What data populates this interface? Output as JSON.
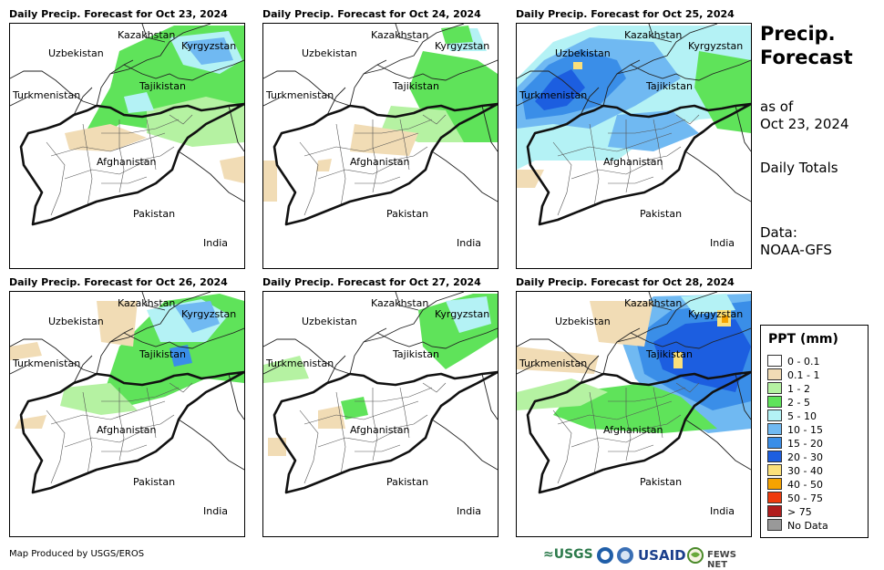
{
  "panels": [
    {
      "title": "Daily Precip. Forecast for Oct 23, 2024"
    },
    {
      "title": "Daily Precip. Forecast for Oct 24, 2024"
    },
    {
      "title": "Daily Precip. Forecast for Oct 25, 2024"
    },
    {
      "title": "Daily Precip. Forecast for Oct 26, 2024"
    },
    {
      "title": "Daily Precip. Forecast for Oct 27, 2024"
    },
    {
      "title": "Daily Precip. Forecast for Oct 28, 2024"
    }
  ],
  "map_labels": {
    "kazakhstan": "Kazakhstan",
    "uzbekistan": "Uzbekistan",
    "kyrgyzstan": "Kyrgyzstan",
    "tajikistan": "Tajikistan",
    "turkmenistan": "Turkmenistan",
    "afghanistan": "Afghanistan",
    "pakistan": "Pakistan",
    "india": "India"
  },
  "sidebar": {
    "title_line1": "Precip.",
    "title_line2": "Forecast",
    "as_of_line1": "as of",
    "as_of_line2": "Oct 23, 2024",
    "totals": "Daily Totals",
    "data_line1": "Data:",
    "data_line2": "NOAA-GFS"
  },
  "legend": {
    "title": "PPT (mm)",
    "items": [
      {
        "label": "0 - 0.1",
        "color": "#ffffff"
      },
      {
        "label": "0.1 - 1",
        "color": "#f1dcb5"
      },
      {
        "label": "1 - 2",
        "color": "#b5f2a2"
      },
      {
        "label": "2 - 5",
        "color": "#5fe35a"
      },
      {
        "label": "5 - 10",
        "color": "#b4f2f5"
      },
      {
        "label": "10 - 15",
        "color": "#70b9f2"
      },
      {
        "label": "15 - 20",
        "color": "#3a8ee8"
      },
      {
        "label": "20 - 30",
        "color": "#1c5ee0"
      },
      {
        "label": "30 - 40",
        "color": "#fbe07a"
      },
      {
        "label": "40 - 50",
        "color": "#f5a300"
      },
      {
        "label": "50 - 75",
        "color": "#ee3a0c"
      },
      {
        "label": "> 75",
        "color": "#b01c1c"
      },
      {
        "label": "No Data",
        "color": "#999999"
      }
    ]
  },
  "footer": {
    "credit": "Map Produced by USGS/EROS",
    "logo_usgs": "≈USGS",
    "logo_usaid": "USAID",
    "logo_fews": "FEWS NET"
  }
}
